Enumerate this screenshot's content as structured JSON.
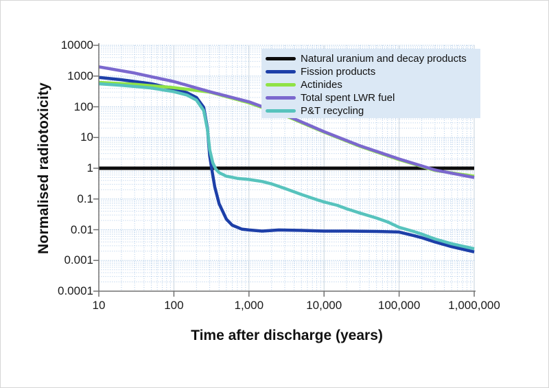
{
  "colors": {
    "legend_background": "#dbe8f5",
    "grid_minor": "#adc9e8",
    "grid_major_h": "#92b8de",
    "grid_major_v": "#c6d2dd",
    "axis_line": "#707070",
    "text": "#111111"
  },
  "chart_data": {
    "type": "line",
    "title": "",
    "xlabel": "Time after discharge (years)",
    "ylabel": "Normalised radiotoxicity",
    "x_scale": "log",
    "y_scale": "log",
    "xlim": [
      10,
      1000000
    ],
    "ylim": [
      0.0001,
      10000
    ],
    "x_ticks": [
      "10",
      "100",
      "1,000",
      "10,000",
      "100,000",
      "1,000,000"
    ],
    "y_ticks": [
      "10000",
      "1000",
      "100",
      "10",
      "1",
      "0.1",
      "0.01",
      "0.001",
      "0.0001"
    ],
    "grid": "log minor dotted, blue",
    "legend_position": "top-right-inside",
    "series": [
      {
        "name": "Natural uranium and decay products",
        "color": "#0d0d0d",
        "width": 5,
        "points": [
          [
            10,
            1
          ],
          [
            1000000,
            1
          ]
        ]
      },
      {
        "name": "Fission products",
        "color": "#1d3fa8",
        "width": 4.5,
        "points": [
          [
            10,
            900
          ],
          [
            20,
            760
          ],
          [
            50,
            560
          ],
          [
            100,
            380
          ],
          [
            150,
            285
          ],
          [
            200,
            200
          ],
          [
            250,
            95
          ],
          [
            280,
            20
          ],
          [
            300,
            2.5
          ],
          [
            320,
            0.9
          ],
          [
            350,
            0.25
          ],
          [
            400,
            0.07
          ],
          [
            500,
            0.022
          ],
          [
            600,
            0.014
          ],
          [
            800,
            0.0105
          ],
          [
            1000,
            0.0098
          ],
          [
            1500,
            0.009
          ],
          [
            2500,
            0.0098
          ],
          [
            5000,
            0.0095
          ],
          [
            10000,
            0.009
          ],
          [
            20000,
            0.009
          ],
          [
            50000,
            0.0088
          ],
          [
            100000,
            0.0084
          ],
          [
            150000,
            0.0066
          ],
          [
            200000,
            0.0055
          ],
          [
            300000,
            0.004
          ],
          [
            500000,
            0.0028
          ],
          [
            1000000,
            0.0019
          ]
        ]
      },
      {
        "name": "Actinides",
        "color": "#90e246",
        "width": 4.5,
        "points": [
          [
            10,
            620
          ],
          [
            30,
            540
          ],
          [
            100,
            420
          ],
          [
            300,
            300
          ],
          [
            1000,
            135
          ],
          [
            3000,
            52
          ],
          [
            10000,
            15
          ],
          [
            30000,
            5.2
          ],
          [
            100000,
            1.9
          ],
          [
            300000,
            0.85
          ],
          [
            1000000,
            0.55
          ]
        ]
      },
      {
        "name": "Total spent LWR fuel",
        "color": "#7b68ce",
        "width": 4.5,
        "points": [
          [
            10,
            2000
          ],
          [
            30,
            1250
          ],
          [
            100,
            660
          ],
          [
            300,
            310
          ],
          [
            1000,
            145
          ],
          [
            3000,
            55
          ],
          [
            10000,
            15.5
          ],
          [
            30000,
            5.4
          ],
          [
            100000,
            2.0
          ],
          [
            300000,
            0.88
          ],
          [
            1000000,
            0.5
          ]
        ]
      },
      {
        "name": "P&T recycling",
        "color": "#57c3bd",
        "width": 4.5,
        "points": [
          [
            10,
            560
          ],
          [
            20,
            500
          ],
          [
            50,
            410
          ],
          [
            100,
            310
          ],
          [
            150,
            240
          ],
          [
            200,
            165
          ],
          [
            250,
            75
          ],
          [
            280,
            18
          ],
          [
            300,
            4
          ],
          [
            330,
            1.5
          ],
          [
            360,
            0.95
          ],
          [
            400,
            0.72
          ],
          [
            500,
            0.55
          ],
          [
            700,
            0.47
          ],
          [
            1000,
            0.43
          ],
          [
            1500,
            0.37
          ],
          [
            2000,
            0.31
          ],
          [
            3000,
            0.22
          ],
          [
            5000,
            0.14
          ],
          [
            8000,
            0.095
          ],
          [
            10000,
            0.08
          ],
          [
            15000,
            0.062
          ],
          [
            20000,
            0.048
          ],
          [
            30000,
            0.035
          ],
          [
            50000,
            0.024
          ],
          [
            70000,
            0.018
          ],
          [
            100000,
            0.012
          ],
          [
            150000,
            0.009
          ],
          [
            200000,
            0.0072
          ],
          [
            300000,
            0.005
          ],
          [
            500000,
            0.0035
          ],
          [
            1000000,
            0.0024
          ]
        ]
      }
    ]
  }
}
